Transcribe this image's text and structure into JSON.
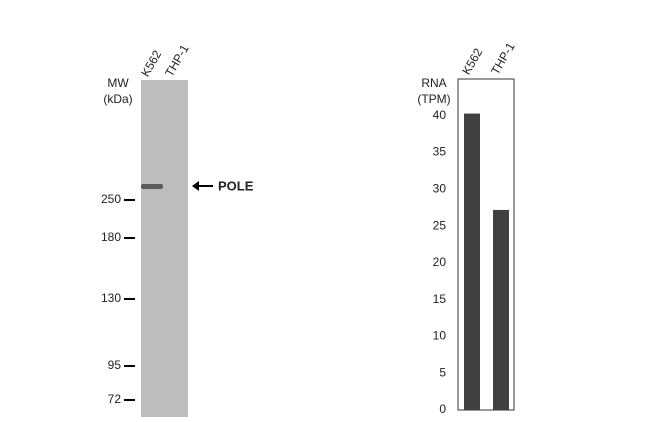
{
  "blot": {
    "lanes": [
      "K562",
      "THP-1"
    ],
    "mw_label": [
      "MW",
      "(kDa)"
    ],
    "markers": [
      250,
      180,
      130,
      95,
      72
    ],
    "band_label": "POLE"
  },
  "chart_data": {
    "type": "bar",
    "ylabel": [
      "RNA",
      "(TPM)"
    ],
    "categories": [
      "K562",
      "THP-1"
    ],
    "values": [
      40.3,
      27.2
    ],
    "color": "#404040",
    "ylim": [
      0,
      45
    ],
    "yticks": [
      0,
      5,
      10,
      15,
      20,
      25,
      30,
      35,
      40
    ],
    "grid": false
  }
}
